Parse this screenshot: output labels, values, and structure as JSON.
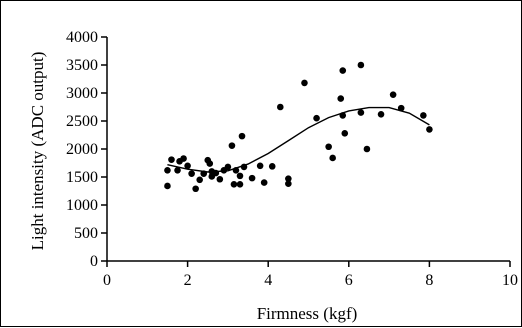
{
  "chart_data": {
    "type": "scatter",
    "title": "",
    "xlabel": "Firmness (kgf)",
    "ylabel": "Light intensity (ADC output)",
    "xlim": [
      0,
      10
    ],
    "ylim": [
      0,
      4000
    ],
    "xticks": [
      0,
      2,
      4,
      6,
      8,
      10
    ],
    "yticks": [
      0,
      500,
      1000,
      1500,
      2000,
      2500,
      3000,
      3500,
      4000
    ],
    "grid": false,
    "legend": "none",
    "colors": {
      "points": "#000000",
      "line": "#000000",
      "axis": "#000000"
    },
    "series": [
      {
        "type": "scatter",
        "points": [
          [
            1.5,
            1340
          ],
          [
            1.5,
            1620
          ],
          [
            1.6,
            1810
          ],
          [
            1.75,
            1620
          ],
          [
            1.8,
            1780
          ],
          [
            1.9,
            1830
          ],
          [
            2.0,
            1700
          ],
          [
            2.1,
            1560
          ],
          [
            2.2,
            1290
          ],
          [
            2.3,
            1450
          ],
          [
            2.4,
            1560
          ],
          [
            2.5,
            1800
          ],
          [
            2.55,
            1740
          ],
          [
            2.6,
            1510
          ],
          [
            2.6,
            1600
          ],
          [
            2.7,
            1570
          ],
          [
            2.8,
            1460
          ],
          [
            2.9,
            1620
          ],
          [
            3.0,
            1680
          ],
          [
            3.1,
            2060
          ],
          [
            3.15,
            1370
          ],
          [
            3.2,
            1620
          ],
          [
            3.3,
            1370
          ],
          [
            3.3,
            1520
          ],
          [
            3.35,
            2230
          ],
          [
            3.4,
            1680
          ],
          [
            3.6,
            1480
          ],
          [
            3.8,
            1700
          ],
          [
            3.9,
            1400
          ],
          [
            4.1,
            1690
          ],
          [
            4.3,
            2750
          ],
          [
            4.5,
            1470
          ],
          [
            4.5,
            1380
          ],
          [
            4.9,
            3180
          ],
          [
            5.2,
            2550
          ],
          [
            5.5,
            2040
          ],
          [
            5.6,
            1840
          ],
          [
            5.8,
            2900
          ],
          [
            5.85,
            3400
          ],
          [
            5.85,
            2600
          ],
          [
            5.9,
            2280
          ],
          [
            6.3,
            3500
          ],
          [
            6.3,
            2650
          ],
          [
            6.45,
            2000
          ],
          [
            6.8,
            2620
          ],
          [
            7.1,
            2970
          ],
          [
            7.3,
            2730
          ],
          [
            7.85,
            2600
          ],
          [
            8.0,
            2350
          ]
        ]
      },
      {
        "type": "line",
        "points": [
          [
            1.5,
            1720
          ],
          [
            2.0,
            1640
          ],
          [
            2.5,
            1590
          ],
          [
            3.0,
            1610
          ],
          [
            3.5,
            1730
          ],
          [
            4.0,
            1920
          ],
          [
            4.5,
            2150
          ],
          [
            5.0,
            2380
          ],
          [
            5.5,
            2560
          ],
          [
            6.0,
            2680
          ],
          [
            6.5,
            2740
          ],
          [
            7.0,
            2740
          ],
          [
            7.5,
            2640
          ],
          [
            8.0,
            2430
          ]
        ]
      }
    ]
  }
}
